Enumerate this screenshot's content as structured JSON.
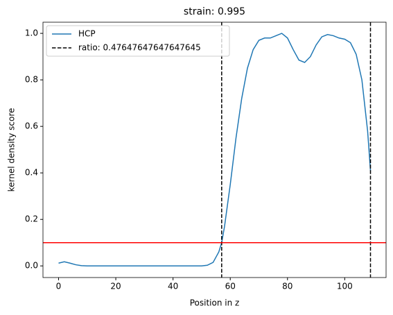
{
  "chart_data": {
    "type": "line",
    "title": "strain: 0.995",
    "xlabel": "Position in z",
    "ylabel": "kernel density score",
    "x": [
      0,
      2,
      4,
      6,
      8,
      10,
      20,
      30,
      40,
      50,
      52,
      54,
      56,
      57,
      58,
      60,
      62,
      64,
      66,
      68,
      70,
      72,
      74,
      76,
      78,
      80,
      82,
      84,
      86,
      88,
      90,
      92,
      94,
      96,
      98,
      100,
      102,
      104,
      106,
      108,
      109
    ],
    "series": [
      {
        "name": "HCP",
        "color": "#1f77b4",
        "values": [
          0.012,
          0.018,
          0.012,
          0.005,
          0.001,
          0.0,
          0.0,
          0.0,
          0.0,
          0.0,
          0.003,
          0.015,
          0.06,
          0.1,
          0.17,
          0.35,
          0.55,
          0.72,
          0.85,
          0.93,
          0.97,
          0.98,
          0.98,
          0.99,
          1.0,
          0.98,
          0.93,
          0.885,
          0.875,
          0.9,
          0.95,
          0.985,
          0.995,
          0.99,
          0.98,
          0.975,
          0.96,
          0.91,
          0.8,
          0.58,
          0.41
        ]
      }
    ],
    "vlines": {
      "name": "ratio: 0.47647647647647645",
      "color": "#000000",
      "values": [
        57,
        109
      ]
    },
    "hline": {
      "value": 0.1,
      "color": "#ff0000"
    },
    "xlim": [
      -5.45,
      114.45
    ],
    "ylim": [
      -0.05,
      1.048
    ],
    "xticks": [
      0,
      20,
      40,
      60,
      80,
      100
    ],
    "yticks": [
      {
        "value": 0,
        "label": "0.0"
      },
      0.2,
      0.4,
      0.6,
      0.8,
      {
        "value": 1,
        "label": "1.0"
      }
    ],
    "legend": "upper left"
  }
}
